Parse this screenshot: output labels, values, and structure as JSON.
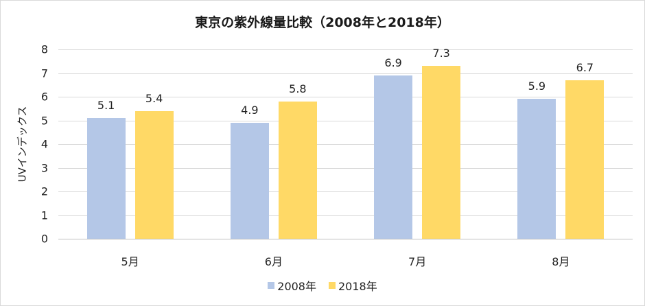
{
  "chart_data": {
    "type": "bar",
    "title": "東京の紫外線量比較（2008年と2018年）",
    "xlabel": "",
    "ylabel": "UVインデックス",
    "categories": [
      "5月",
      "6月",
      "7月",
      "8月"
    ],
    "series": [
      {
        "name": "2008年",
        "color": "#b4c7e7",
        "values": [
          5.1,
          4.9,
          6.9,
          5.9
        ]
      },
      {
        "name": "2018年",
        "color": "#ffd966",
        "values": [
          5.4,
          5.8,
          7.3,
          6.7
        ]
      }
    ],
    "ylim": [
      0,
      8
    ],
    "yticks": [
      0,
      1,
      2,
      3,
      4,
      5,
      6,
      7,
      8
    ],
    "grid": true,
    "legend_position": "bottom",
    "data_labels": true
  }
}
